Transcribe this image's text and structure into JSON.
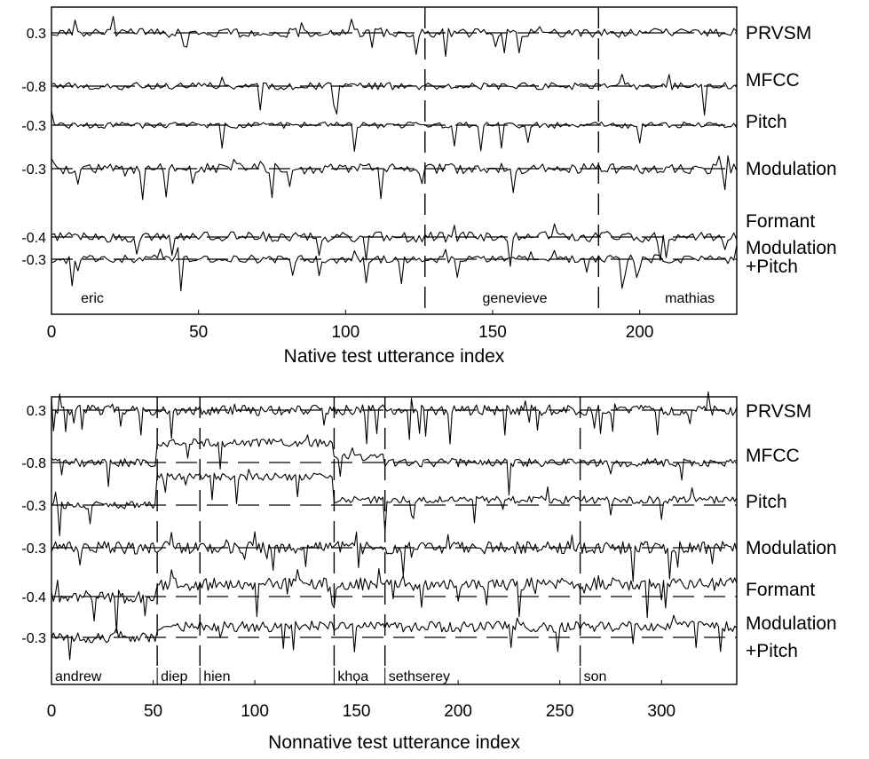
{
  "chart_data": [
    {
      "type": "line",
      "xlabel": "Native test utterance index",
      "xlim": [
        0,
        233
      ],
      "xticks": [
        0,
        50,
        100,
        150,
        200
      ],
      "row_labels": [
        {
          "name": "PRVSM"
        },
        {
          "name": "MFCC"
        },
        {
          "name": "Pitch"
        },
        {
          "name": "Modulation"
        },
        {
          "name": "Formant"
        },
        {
          "name": "Modulation\n+Pitch"
        }
      ],
      "row_values": [
        "0.3",
        "-0.8",
        "-0.3",
        "-0.3",
        "-0.4",
        "-0.3"
      ],
      "speakers": [
        {
          "name": "eric",
          "start": 0,
          "end": 127
        },
        {
          "name": "genevieve",
          "start": 127,
          "end": 186
        },
        {
          "name": "mathias",
          "start": 186,
          "end": 233
        }
      ],
      "grid": false,
      "legend": "right"
    },
    {
      "type": "line",
      "xlabel": "Nonnative test utterance index",
      "xlim": [
        0,
        337
      ],
      "xticks": [
        0,
        50,
        100,
        150,
        200,
        250,
        300
      ],
      "row_labels": [
        {
          "name": "PRVSM"
        },
        {
          "name": "MFCC"
        },
        {
          "name": "Pitch"
        },
        {
          "name": "Modulation"
        },
        {
          "name": "Formant"
        },
        {
          "name": "Modulation\n+Pitch"
        }
      ],
      "row_values": [
        "0.3",
        "-0.8",
        "-0.3",
        "-0.3",
        "-0.4",
        "-0.3"
      ],
      "speakers": [
        {
          "name": "andrew",
          "start": 0,
          "end": 52
        },
        {
          "name": "diep",
          "start": 52,
          "end": 73
        },
        {
          "name": "hien",
          "start": 73,
          "end": 139
        },
        {
          "name": "khoa",
          "start": 139,
          "end": 164
        },
        {
          "name": "sethserey",
          "start": 164,
          "end": 260
        },
        {
          "name": "son",
          "start": 260,
          "end": 337
        }
      ],
      "grid": false,
      "legend": "right"
    }
  ]
}
